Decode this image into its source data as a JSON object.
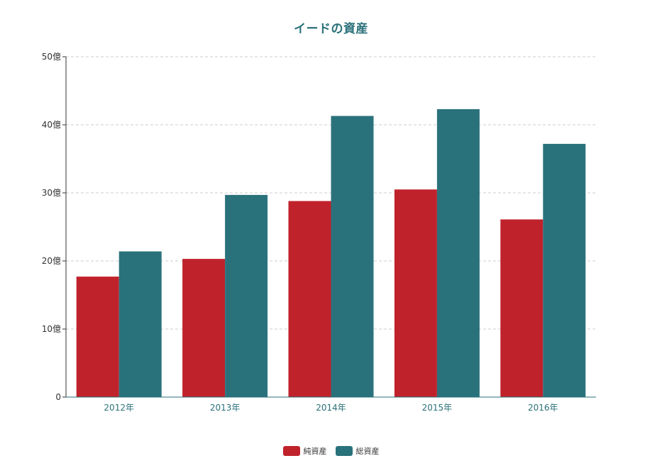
{
  "chart_data": {
    "type": "bar",
    "title": "イードの資産",
    "categories": [
      "2012年",
      "2013年",
      "2014年",
      "2015年",
      "2016年"
    ],
    "series": [
      {
        "name": "純資産",
        "color": "#c0222c",
        "values": [
          17.7,
          20.3,
          28.8,
          30.5,
          26.1
        ]
      },
      {
        "name": "総資産",
        "color": "#2a727b",
        "values": [
          21.4,
          29.7,
          41.3,
          42.3,
          37.2
        ]
      }
    ],
    "y_ticks": [
      "0",
      "10億",
      "20億",
      "30億",
      "40億",
      "50億"
    ],
    "ylim": [
      0,
      50
    ],
    "grid": true,
    "legend_position": "bottom-center"
  }
}
